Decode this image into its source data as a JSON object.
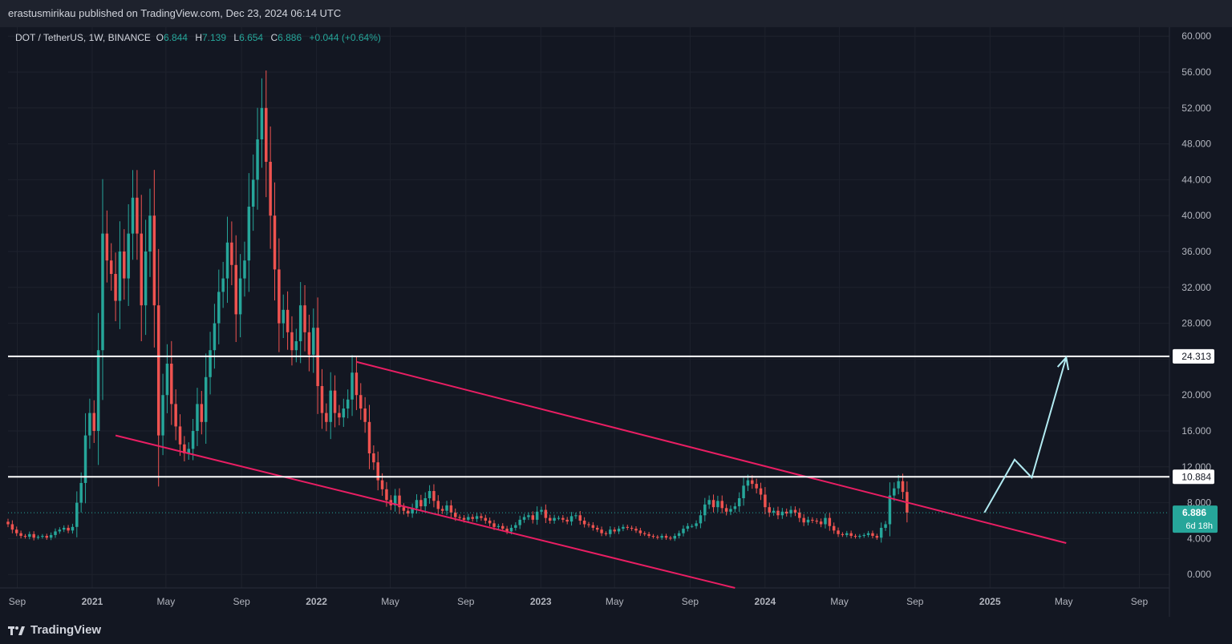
{
  "header": {
    "publisher": "erastusmirikau published on TradingView.com, Dec 23, 2024 06:14 UTC"
  },
  "legend": {
    "symbol": "DOT / TetherUS, 1W, BINANCE",
    "o_label": "O",
    "o_value": "6.844",
    "h_label": "H",
    "h_value": "7.139",
    "l_label": "L",
    "l_value": "6.654",
    "c_label": "C",
    "c_value": "6.886",
    "change": "+0.044 (+0.64%)"
  },
  "footer": {
    "brand": "TradingView",
    "logo_icon": "tradingview-logo-icon"
  },
  "colors": {
    "background": "#131722",
    "up": "#26a69a",
    "down": "#ef5350",
    "trendline": "#e91e63",
    "level": "#ffffff",
    "projection": "#b2ebf2",
    "axis_text": "#b2b5be"
  },
  "chart_data": {
    "type": "candlestick",
    "ylim": [
      -1.5,
      61
    ],
    "yticks": [
      "60.000",
      "56.000",
      "52.000",
      "48.000",
      "44.000",
      "40.000",
      "36.000",
      "32.000",
      "28.000",
      "24.000",
      "20.000",
      "16.000",
      "12.000",
      "8.000",
      "4.000",
      "0.000"
    ],
    "ytick_values": [
      60,
      56,
      52,
      48,
      44,
      40,
      36,
      32,
      28,
      24,
      20,
      16,
      12,
      8,
      4,
      0
    ],
    "xlim": [
      "2020-08-17",
      "2025-10-20"
    ],
    "xticks": [
      {
        "label": "Sep",
        "date": "2020-09-01",
        "bold": false
      },
      {
        "label": "2021",
        "date": "2021-01-01",
        "bold": true
      },
      {
        "label": "May",
        "date": "2021-05-01",
        "bold": false
      },
      {
        "label": "Sep",
        "date": "2021-09-01",
        "bold": false
      },
      {
        "label": "2022",
        "date": "2022-01-01",
        "bold": true
      },
      {
        "label": "May",
        "date": "2022-05-01",
        "bold": false
      },
      {
        "label": "Sep",
        "date": "2022-09-01",
        "bold": false
      },
      {
        "label": "2023",
        "date": "2023-01-01",
        "bold": true
      },
      {
        "label": "May",
        "date": "2023-05-01",
        "bold": false
      },
      {
        "label": "Sep",
        "date": "2023-09-01",
        "bold": false
      },
      {
        "label": "2024",
        "date": "2024-01-01",
        "bold": true
      },
      {
        "label": "May",
        "date": "2024-05-01",
        "bold": false
      },
      {
        "label": "Sep",
        "date": "2024-09-01",
        "bold": false
      },
      {
        "label": "2025",
        "date": "2025-01-01",
        "bold": true
      },
      {
        "label": "May",
        "date": "2025-05-01",
        "bold": false
      },
      {
        "label": "Sep",
        "date": "2025-09-01",
        "bold": false
      }
    ],
    "candle_start": "2020-08-17",
    "candle_interval": "1W",
    "closes": [
      5.6,
      5.0,
      4.6,
      4.3,
      4.2,
      4.5,
      4.1,
      4.2,
      4.3,
      4.1,
      4.4,
      4.8,
      5.0,
      5.2,
      4.9,
      5.3,
      8.0,
      10.2,
      15.5,
      18.0,
      16.0,
      25.0,
      38.0,
      35.0,
      33.5,
      30.5,
      36.0,
      33.0,
      38.0,
      42.0,
      38.0,
      30.0,
      36.0,
      40.0,
      30.0,
      15.5,
      20.0,
      23.5,
      19.0,
      16.5,
      14.5,
      13.5,
      14.0,
      16.0,
      19.0,
      17.0,
      22.0,
      25.0,
      28.0,
      31.5,
      33.0,
      37.0,
      34.5,
      29.0,
      33.0,
      35.0,
      41.0,
      44.0,
      48.5,
      52.0,
      46.0,
      40.0,
      34.0,
      28.0,
      29.5,
      27.0,
      25.0,
      26.0,
      30.0,
      27.0,
      24.5,
      27.5,
      21.0,
      18.0,
      17.0,
      20.5,
      18.0,
      17.5,
      18.5,
      19.5,
      22.5,
      20.0,
      18.5,
      17.0,
      13.5,
      12.5,
      10.5,
      9.5,
      8.3,
      7.7,
      8.8,
      7.5,
      7.1,
      6.8,
      7.4,
      8.3,
      7.6,
      8.5,
      9.3,
      8.2,
      7.3,
      7.1,
      7.7,
      6.9,
      6.4,
      6.3,
      6.1,
      6.4,
      6.2,
      6.5,
      6.3,
      6.0,
      5.7,
      5.3,
      5.4,
      5.1,
      4.8,
      5.2,
      5.5,
      6.1,
      6.4,
      6.6,
      6.1,
      7.0,
      7.2,
      6.3,
      6.0,
      6.3,
      6.3,
      6.1,
      5.9,
      6.5,
      6.6,
      6.0,
      5.6,
      5.5,
      5.2,
      5.0,
      4.6,
      4.5,
      5.0,
      4.8,
      5.1,
      5.3,
      5.2,
      5.1,
      4.9,
      4.6,
      4.5,
      4.3,
      4.2,
      4.1,
      4.3,
      4.1,
      4.0,
      4.3,
      4.6,
      5.1,
      5.4,
      5.4,
      5.7,
      6.6,
      7.8,
      8.3,
      7.5,
      8.2,
      7.4,
      7.0,
      7.3,
      7.6,
      8.5,
      9.9,
      10.5,
      10.1,
      9.6,
      8.9,
      7.5,
      6.9,
      7.1,
      6.6,
      7.0,
      6.8,
      7.2,
      6.9,
      6.3,
      5.8,
      6.1,
      6.0,
      5.9,
      5.6,
      6.3,
      5.4,
      4.9,
      4.5,
      4.4,
      4.6,
      4.3,
      4.2,
      4.3,
      4.4,
      4.6,
      4.3,
      4.1,
      5.2,
      5.6,
      8.8,
      9.6,
      10.4,
      9.2,
      6.89
    ],
    "annotations": {
      "level_upper": {
        "value": 24.313,
        "label": "24.313"
      },
      "level_lower": {
        "value": 10.884,
        "label": "10.884"
      },
      "channel_upper": {
        "from": {
          "date": "2022-03-07",
          "value": 23.7
        },
        "to": {
          "date": "2025-05-05",
          "value": 3.5
        }
      },
      "channel_lower": {
        "from": {
          "date": "2021-02-08",
          "value": 15.5
        },
        "to": {
          "date": "2023-11-13",
          "value": -1.5
        }
      },
      "projection": [
        {
          "date": "2024-12-23",
          "value": 6.9
        },
        {
          "date": "2025-02-10",
          "value": 12.8
        },
        {
          "date": "2025-03-10",
          "value": 10.8
        },
        {
          "date": "2025-05-05",
          "value": 24.2
        }
      ],
      "last_price": {
        "value": 6.886,
        "label": "6.886",
        "countdown": "6d 18h"
      }
    }
  }
}
